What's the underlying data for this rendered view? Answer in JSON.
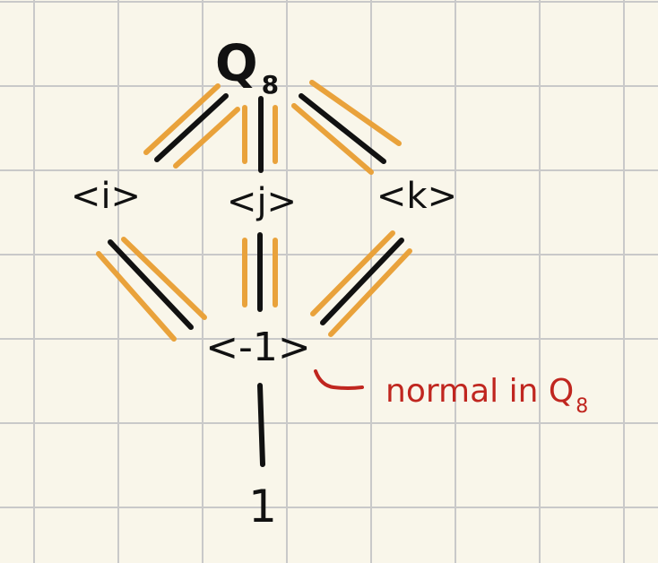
{
  "colors": {
    "paper": "#f9f6ea",
    "grid": "#c9c9c9",
    "ink": "#111111",
    "highlight": "#e9a23b",
    "annotation": "#c0261f"
  },
  "nodes": {
    "q8": {
      "base": "Q",
      "sub": "8"
    },
    "i": "<i>",
    "j": "<j>",
    "k": "<k>",
    "neg1": "<-1>",
    "one": "1"
  },
  "annotation": {
    "text": "normal in Q",
    "sub": "8"
  }
}
